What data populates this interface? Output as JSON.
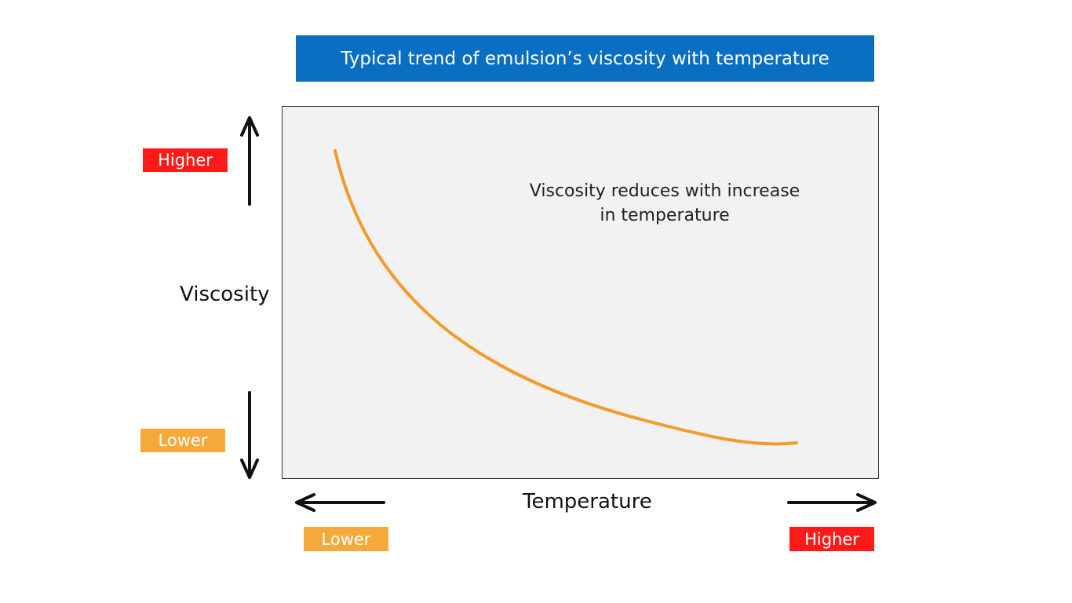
{
  "title": "Typical trend of emulsion’s viscosity with temperature",
  "annotation": {
    "line1": "Viscosity reduces with increase",
    "line2": "in temperature"
  },
  "y_axis": {
    "label": "Viscosity",
    "high_label": "Higher",
    "low_label": "Lower"
  },
  "x_axis": {
    "label": "Temperature",
    "low_label": "Lower",
    "high_label": "Higher"
  },
  "colors": {
    "title_background": "#0a6fc0",
    "higher": "#ff1a1a",
    "lower": "#f5a93b",
    "curve": "#f39a2b",
    "plot_background": "#f2f2f2"
  }
}
